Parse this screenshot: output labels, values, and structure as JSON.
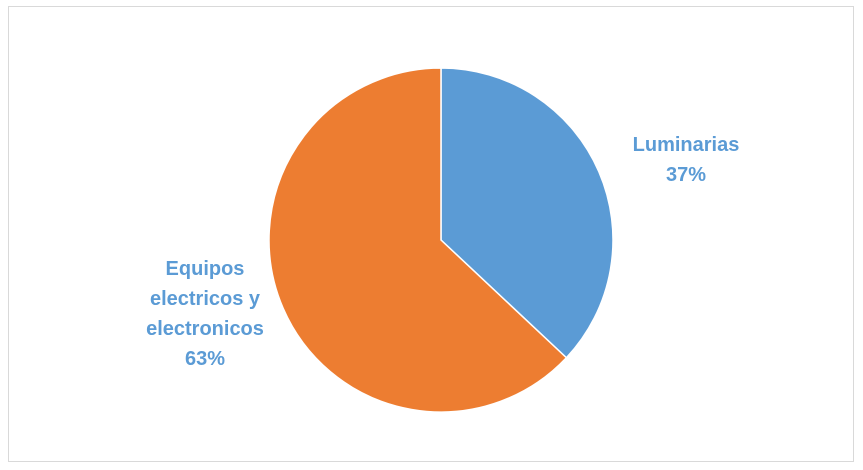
{
  "chart_data": {
    "type": "pie",
    "title": "",
    "slices": [
      {
        "label_lines": [
          "Luminarias"
        ],
        "value": 37,
        "percent_label": "37%",
        "color": "#5b9bd5"
      },
      {
        "label_lines": [
          "Equipos",
          "electricos y",
          "electronicos"
        ],
        "value": 63,
        "percent_label": "63%",
        "color": "#ed7d31"
      }
    ],
    "label_color": "#5b9bd5",
    "start_angle": "12 o'clock",
    "direction": "clockwise",
    "legend": "none",
    "labels_position": "outside"
  }
}
